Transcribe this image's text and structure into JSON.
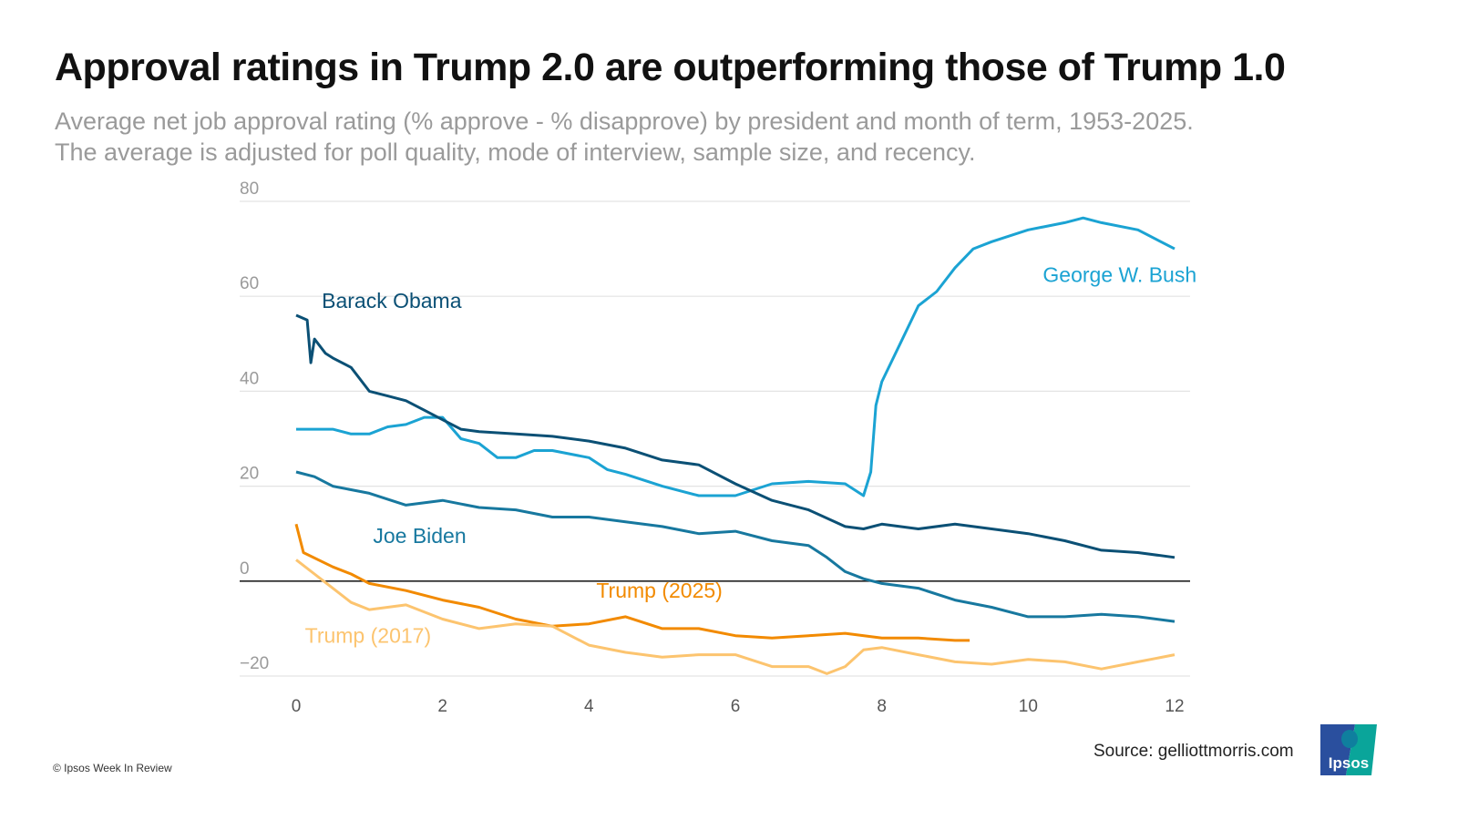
{
  "title": "Approval ratings in Trump 2.0 are outperforming those of Trump 1.0",
  "subtitle_line1": "Average net job approval rating (% approve - % disapprove) by president and month of term, 1953-2025.",
  "subtitle_line2": "The average is adjusted for poll quality, mode of interview, sample size, and recency.",
  "source": "Source: gelliottmorris.com",
  "copyright": "© Ipsos Week In Review",
  "logo_text": "Ipsos",
  "chart_data": {
    "type": "line",
    "xlabel": "",
    "ylabel": "",
    "xlim": [
      0,
      12
    ],
    "ylim": [
      -20,
      80
    ],
    "x_ticks": [
      "0",
      "2",
      "4",
      "6",
      "8",
      "10",
      "12"
    ],
    "y_ticks": [
      "80",
      "60",
      "40",
      "20",
      "0",
      "−20"
    ],
    "grid": true,
    "series": [
      {
        "name": "George W. Bush",
        "color": "#1ba3d3",
        "points": [
          [
            0,
            32
          ],
          [
            0.5,
            32
          ],
          [
            0.75,
            31
          ],
          [
            1,
            31
          ],
          [
            1.25,
            32.5
          ],
          [
            1.5,
            33
          ],
          [
            1.75,
            34.5
          ],
          [
            2,
            34.5
          ],
          [
            2.25,
            30
          ],
          [
            2.5,
            29
          ],
          [
            2.75,
            26
          ],
          [
            3,
            26
          ],
          [
            3.25,
            27.5
          ],
          [
            3.5,
            27.5
          ],
          [
            4,
            26
          ],
          [
            4.25,
            23.5
          ],
          [
            4.5,
            22.5
          ],
          [
            5,
            20
          ],
          [
            5.5,
            18
          ],
          [
            6,
            18
          ],
          [
            6.5,
            20.5
          ],
          [
            7,
            21
          ],
          [
            7.5,
            20.5
          ],
          [
            7.75,
            18
          ],
          [
            7.85,
            23
          ],
          [
            7.92,
            37
          ],
          [
            8,
            42
          ],
          [
            8.25,
            50
          ],
          [
            8.5,
            58
          ],
          [
            8.75,
            61
          ],
          [
            9,
            66
          ],
          [
            9.25,
            70
          ],
          [
            9.5,
            71.5
          ],
          [
            10,
            74
          ],
          [
            10.5,
            75.5
          ],
          [
            10.75,
            76.5
          ],
          [
            11,
            75.5
          ],
          [
            11.5,
            74
          ],
          [
            12,
            70
          ]
        ]
      },
      {
        "name": "Barack Obama",
        "color": "#0b5075",
        "points": [
          [
            0,
            56
          ],
          [
            0.15,
            55
          ],
          [
            0.2,
            46
          ],
          [
            0.25,
            51
          ],
          [
            0.4,
            48
          ],
          [
            0.5,
            47
          ],
          [
            0.75,
            45
          ],
          [
            1,
            40
          ],
          [
            1.25,
            39
          ],
          [
            1.5,
            38
          ],
          [
            1.75,
            36
          ],
          [
            2,
            34
          ],
          [
            2.25,
            32
          ],
          [
            2.5,
            31.5
          ],
          [
            3,
            31
          ],
          [
            3.5,
            30.5
          ],
          [
            4,
            29.5
          ],
          [
            4.5,
            28
          ],
          [
            5,
            25.5
          ],
          [
            5.5,
            24.5
          ],
          [
            6,
            20.5
          ],
          [
            6.5,
            17
          ],
          [
            7,
            15
          ],
          [
            7.5,
            11.5
          ],
          [
            7.75,
            11
          ],
          [
            8,
            12
          ],
          [
            8.5,
            11
          ],
          [
            9,
            12
          ],
          [
            9.5,
            11
          ],
          [
            10,
            10
          ],
          [
            10.5,
            8.5
          ],
          [
            11,
            6.5
          ],
          [
            11.5,
            6
          ],
          [
            12,
            5
          ]
        ]
      },
      {
        "name": "Joe Biden",
        "color": "#17789f",
        "points": [
          [
            0,
            23
          ],
          [
            0.25,
            22
          ],
          [
            0.5,
            20
          ],
          [
            1,
            18.5
          ],
          [
            1.5,
            16
          ],
          [
            2,
            17
          ],
          [
            2.5,
            15.5
          ],
          [
            3,
            15
          ],
          [
            3.5,
            13.5
          ],
          [
            4,
            13.5
          ],
          [
            4.5,
            12.5
          ],
          [
            5,
            11.5
          ],
          [
            5.5,
            10
          ],
          [
            6,
            10.5
          ],
          [
            6.5,
            8.5
          ],
          [
            7,
            7.5
          ],
          [
            7.25,
            5
          ],
          [
            7.5,
            2
          ],
          [
            7.75,
            0.5
          ],
          [
            8,
            -0.5
          ],
          [
            8.5,
            -1.5
          ],
          [
            9,
            -4
          ],
          [
            9.5,
            -5.5
          ],
          [
            10,
            -7.5
          ],
          [
            10.5,
            -7.5
          ],
          [
            11,
            -7
          ],
          [
            11.5,
            -7.5
          ],
          [
            12,
            -8.5
          ]
        ]
      },
      {
        "name": "Trump (2025)",
        "color": "#f28a00",
        "points": [
          [
            0,
            12
          ],
          [
            0.1,
            6
          ],
          [
            0.5,
            3
          ],
          [
            0.75,
            1.5
          ],
          [
            1,
            -0.5
          ],
          [
            1.5,
            -2
          ],
          [
            2,
            -4
          ],
          [
            2.5,
            -5.5
          ],
          [
            3,
            -8
          ],
          [
            3.5,
            -9.5
          ],
          [
            4,
            -9
          ],
          [
            4.5,
            -7.5
          ],
          [
            5,
            -10
          ],
          [
            5.5,
            -10
          ],
          [
            6,
            -11.5
          ],
          [
            6.5,
            -12
          ],
          [
            7,
            -11.5
          ],
          [
            7.5,
            -11
          ],
          [
            8,
            -12
          ],
          [
            8.5,
            -12
          ],
          [
            9,
            -12.5
          ],
          [
            9.2,
            -12.5
          ]
        ]
      },
      {
        "name": "Trump (2017)",
        "color": "#fcc46f",
        "points": [
          [
            0,
            4.5
          ],
          [
            0.25,
            1.5
          ],
          [
            0.5,
            -1.5
          ],
          [
            0.75,
            -4.5
          ],
          [
            1,
            -6
          ],
          [
            1.5,
            -5
          ],
          [
            2,
            -8
          ],
          [
            2.5,
            -10
          ],
          [
            3,
            -9
          ],
          [
            3.5,
            -9.5
          ],
          [
            4,
            -13.5
          ],
          [
            4.5,
            -15
          ],
          [
            5,
            -16
          ],
          [
            5.5,
            -15.5
          ],
          [
            6,
            -15.5
          ],
          [
            6.5,
            -18
          ],
          [
            7,
            -18
          ],
          [
            7.25,
            -19.5
          ],
          [
            7.5,
            -18
          ],
          [
            7.75,
            -14.5
          ],
          [
            8,
            -14
          ],
          [
            8.5,
            -15.5
          ],
          [
            9,
            -17
          ],
          [
            9.5,
            -17.5
          ],
          [
            10,
            -16.5
          ],
          [
            10.5,
            -17
          ],
          [
            11,
            -18.5
          ],
          [
            11.5,
            -17
          ],
          [
            12,
            -15.5
          ]
        ]
      }
    ],
    "labels": [
      {
        "text": "George W. Bush",
        "series": "George W. Bush",
        "at": [
          10.2,
          63
        ]
      },
      {
        "text": "Barack Obama",
        "series": "Barack Obama",
        "at": [
          0.35,
          57.5
        ]
      },
      {
        "text": "Joe Biden",
        "series": "Joe Biden",
        "at": [
          1.05,
          8
        ]
      },
      {
        "text": "Trump (2025)",
        "series": "Trump (2025)",
        "at": [
          4.1,
          -3.5
        ]
      },
      {
        "text": "Trump (2017)",
        "series": "Trump (2017)",
        "at": [
          0.12,
          -13
        ]
      }
    ]
  }
}
